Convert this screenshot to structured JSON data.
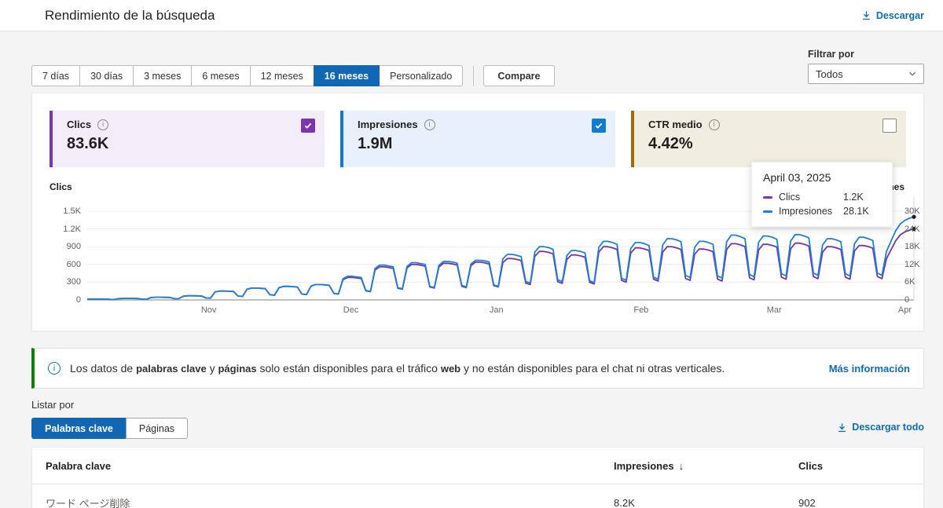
{
  "header": {
    "title": "Rendimiento de la búsqueda",
    "download_label": "Descargar"
  },
  "filters": {
    "ranges": [
      "7 días",
      "30 días",
      "3 meses",
      "6 meses",
      "12 meses",
      "16 meses",
      "Personalizado"
    ],
    "selected_range": "16 meses",
    "compare_label": "Compare",
    "filter_by_label": "Filtrar por",
    "filter_value": "Todos"
  },
  "metrics": [
    {
      "label": "Clics",
      "value": "83.6K",
      "checked": true,
      "accent": "#7A35B0",
      "bg": "#F3EDFA"
    },
    {
      "label": "Impresiones",
      "value": "1.9M",
      "checked": true,
      "accent": "#0F7BD4",
      "bg": "#E8F1FB"
    },
    {
      "label": "CTR medio",
      "value": "4.42%",
      "checked": false,
      "accent": "#986F0B",
      "bg": "#F1EDE1"
    }
  ],
  "tooltip": {
    "date": "April 03, 2025",
    "rows": [
      {
        "label": "Clics",
        "value": "1.2K",
        "color": "#7A35B0"
      },
      {
        "label": "Impresiones",
        "value": "28.1K",
        "color": "#1E7FD8"
      }
    ]
  },
  "chart_data": {
    "type": "line",
    "left_axis": {
      "title": "Clics",
      "ticks": [
        "1.5K",
        "1.2K",
        "900",
        "600",
        "300",
        "0"
      ],
      "max": 1500
    },
    "right_axis": {
      "title": "Impresiones",
      "ticks": [
        "30K",
        "24K",
        "18K",
        "12K",
        "6K",
        "0"
      ],
      "max": 30000
    },
    "x_ticks": [
      {
        "label": "Nov",
        "pos": 0.147
      },
      {
        "label": "Dec",
        "pos": 0.319
      },
      {
        "label": "Jan",
        "pos": 0.495
      },
      {
        "label": "Feb",
        "pos": 0.67
      },
      {
        "label": "Mar",
        "pos": 0.831
      },
      {
        "label": "Apr",
        "pos": 0.989
      }
    ],
    "series": [
      {
        "name": "Clics",
        "axis": "left",
        "color": "#7733AB",
        "values": [
          14,
          15,
          15,
          15,
          14,
          9,
          8,
          23,
          25,
          25,
          25,
          24,
          13,
          12,
          41,
          45,
          45,
          44,
          43,
          22,
          20,
          63,
          70,
          70,
          69,
          67,
          33,
          30,
          135,
          150,
          150,
          147,
          143,
          66,
          60,
          180,
          200,
          200,
          196,
          190,
          88,
          80,
          207,
          230,
          230,
          225,
          219,
          99,
          90,
          234,
          260,
          260,
          255,
          247,
          110,
          100,
          342,
          380,
          380,
          372,
          361,
          154,
          140,
          504,
          560,
          560,
          549,
          532,
          198,
          180,
          540,
          600,
          600,
          588,
          570,
          220,
          200,
          558,
          620,
          620,
          608,
          589,
          231,
          210,
          576,
          640,
          640,
          627,
          608,
          242,
          220,
          630,
          700,
          700,
          686,
          665,
          286,
          260,
          738,
          820,
          820,
          804,
          779,
          308,
          280,
          684,
          760,
          760,
          745,
          722,
          297,
          270,
          810,
          900,
          900,
          882,
          855,
          330,
          300,
          792,
          880,
          880,
          862,
          836,
          352,
          320,
          810,
          900,
          900,
          882,
          855,
          363,
          330,
          774,
          860,
          860,
          843,
          817,
          352,
          320,
          855,
          950,
          950,
          931,
          902,
          374,
          340,
          846,
          940,
          940,
          921,
          893,
          385,
          350,
          864,
          960,
          960,
          941,
          912,
          396,
          360,
          810,
          900,
          900,
          882,
          855,
          385,
          350,
          828,
          920,
          920,
          902,
          874,
          396,
          360,
          700,
          850,
          1000,
          1100,
          1150,
          1180,
          1200
        ]
      },
      {
        "name": "Impresiones",
        "axis": "right",
        "color": "#1E7FD8",
        "values": [
          280,
          300,
          300,
          300,
          280,
          180,
          160,
          460,
          500,
          500,
          500,
          480,
          260,
          240,
          820,
          900,
          900,
          880,
          860,
          440,
          400,
          1260,
          1400,
          1400,
          1380,
          1340,
          660,
          600,
          2700,
          3000,
          3000,
          2940,
          2860,
          1320,
          1200,
          3600,
          4000,
          4000,
          3920,
          3800,
          1760,
          1600,
          4140,
          4600,
          4600,
          4500,
          4380,
          1980,
          1800,
          4680,
          5200,
          5200,
          5100,
          4940,
          2200,
          2000,
          7200,
          8000,
          8000,
          7800,
          7600,
          3200,
          2900,
          10600,
          11800,
          11800,
          11500,
          11200,
          4200,
          3800,
          11300,
          12600,
          12600,
          12300,
          12000,
          4600,
          4200,
          11700,
          13000,
          13000,
          12800,
          12400,
          4900,
          4400,
          12100,
          13400,
          13400,
          13200,
          12800,
          5100,
          4600,
          13900,
          15400,
          15400,
          15100,
          14600,
          6300,
          5700,
          16200,
          18000,
          18000,
          17700,
          17100,
          6800,
          6200,
          15000,
          16700,
          16700,
          16400,
          15900,
          6500,
          5900,
          17800,
          19800,
          19800,
          19400,
          18800,
          7300,
          6600,
          17400,
          19400,
          19400,
          19000,
          18400,
          7700,
          7000,
          18600,
          20700,
          20700,
          20300,
          19700,
          8300,
          7600,
          17800,
          19800,
          19800,
          19400,
          18800,
          8100,
          7400,
          19700,
          21900,
          21900,
          21400,
          20700,
          8600,
          7800,
          19500,
          21600,
          21600,
          21200,
          20500,
          8900,
          8100,
          19900,
          22100,
          22100,
          21600,
          21000,
          9100,
          8300,
          18600,
          20700,
          20700,
          20300,
          19700,
          8900,
          8100,
          19000,
          21200,
          21200,
          20700,
          20100,
          9100,
          8300,
          16400,
          19900,
          23400,
          25700,
          26900,
          27600,
          28100
        ]
      }
    ]
  },
  "banner": {
    "segments": [
      {
        "text": "Los datos de ",
        "bold": false
      },
      {
        "text": "palabras clave",
        "bold": true
      },
      {
        "text": " y ",
        "bold": false
      },
      {
        "text": "páginas",
        "bold": true
      },
      {
        "text": " solo están disponibles para el tráfico ",
        "bold": false
      },
      {
        "text": "web",
        "bold": true
      },
      {
        "text": " y no están disponibles para el chat ni otras verticales.",
        "bold": false
      }
    ],
    "link_label": "Más información"
  },
  "list_section": {
    "label": "Listar por",
    "tabs": [
      "Palabras clave",
      "Páginas"
    ],
    "selected_tab": "Palabras clave",
    "download_label": "Descargar todo"
  },
  "table": {
    "columns": [
      "Palabra clave",
      "Impresiones",
      "Clics"
    ],
    "sorted_column": "Impresiones",
    "sort_icon": "↓",
    "rows": [
      {
        "keyword": "ワード ページ削除",
        "impresiones": "8.2K",
        "clics": "902"
      }
    ]
  }
}
